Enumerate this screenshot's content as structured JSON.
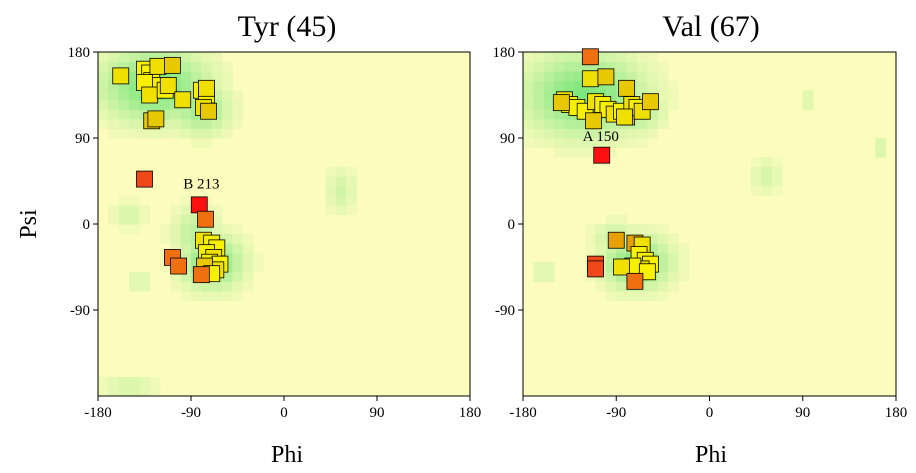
{
  "chart_data": [
    {
      "type": "scatter",
      "title": "Tyr (45)",
      "xlabel": "Phi",
      "ylabel": "Psi",
      "xlim": [
        -180,
        180
      ],
      "ylim": [
        -180,
        180
      ],
      "xticks": [
        "-180",
        "-90",
        "0",
        "90",
        "180"
      ],
      "yticks": [
        "180",
        "90",
        "0",
        "-90"
      ],
      "background_color": "#fcfcbc",
      "density_color": "#7ce67c",
      "density_regions": [
        {
          "phi": -125,
          "psi": 145,
          "rphi": 55,
          "rpsi": 40,
          "strength": 1.0
        },
        {
          "phi": -80,
          "psi": 120,
          "rphi": 30,
          "rpsi": 28,
          "strength": 0.7
        },
        {
          "phi": -70,
          "psi": -40,
          "rphi": 32,
          "rpsi": 30,
          "strength": 0.9
        },
        {
          "phi": -85,
          "psi": -10,
          "rphi": 25,
          "rpsi": 30,
          "strength": 0.5
        },
        {
          "phi": 55,
          "psi": 35,
          "rphi": 15,
          "rpsi": 25,
          "strength": 0.35
        },
        {
          "phi": -150,
          "psi": 10,
          "rphi": 18,
          "rpsi": 15,
          "strength": 0.3
        },
        {
          "phi": -140,
          "psi": -60,
          "rphi": 15,
          "rpsi": 15,
          "strength": 0.25
        },
        {
          "phi": -150,
          "psi": -170,
          "rphi": 30,
          "rpsi": 10,
          "strength": 0.35
        }
      ],
      "annotations": [
        {
          "text": "B 213",
          "phi": -80,
          "psi": 37
        }
      ],
      "points": [
        {
          "phi": -158,
          "psi": 155,
          "color": "#f0e000"
        },
        {
          "phi": -135,
          "psi": 162,
          "color": "#f7f000"
        },
        {
          "phi": -130,
          "psi": 158,
          "color": "#f7f000"
        },
        {
          "phi": -128,
          "psi": 150,
          "color": "#f7f000"
        },
        {
          "phi": -125,
          "psi": 140,
          "color": "#f7f000"
        },
        {
          "phi": -120,
          "psi": 145,
          "color": "#f7f000"
        },
        {
          "phi": -135,
          "psi": 148,
          "color": "#f7f000"
        },
        {
          "phi": -130,
          "psi": 135,
          "color": "#f0e000"
        },
        {
          "phi": -115,
          "psi": 140,
          "color": "#f7f000"
        },
        {
          "phi": -112,
          "psi": 145,
          "color": "#f0e000"
        },
        {
          "phi": -122,
          "psi": 165,
          "color": "#f0e000"
        },
        {
          "phi": -108,
          "psi": 166,
          "color": "#e8c800"
        },
        {
          "phi": -98,
          "psi": 130,
          "color": "#f0e000"
        },
        {
          "phi": -80,
          "psi": 140,
          "color": "#f7f000"
        },
        {
          "phi": -75,
          "psi": 135,
          "color": "#f7f000"
        },
        {
          "phi": -75,
          "psi": 142,
          "color": "#f0e000"
        },
        {
          "phi": -78,
          "psi": 122,
          "color": "#f0e000"
        },
        {
          "phi": -73,
          "psi": 118,
          "color": "#e8c800"
        },
        {
          "phi": -128,
          "psi": 108,
          "color": "#e8c800"
        },
        {
          "phi": -124,
          "psi": 110,
          "color": "#e8c800"
        },
        {
          "phi": -135,
          "psi": 47,
          "color": "#f04818"
        },
        {
          "phi": -82,
          "psi": 20,
          "color": "#ff1010"
        },
        {
          "phi": -76,
          "psi": 5,
          "color": "#f07010"
        },
        {
          "phi": -78,
          "psi": -17,
          "color": "#f0e000"
        },
        {
          "phi": -70,
          "psi": -20,
          "color": "#f7f000"
        },
        {
          "phi": -65,
          "psi": -25,
          "color": "#f7f000"
        },
        {
          "phi": -75,
          "psi": -30,
          "color": "#f7f000"
        },
        {
          "phi": -68,
          "psi": -35,
          "color": "#f0e000"
        },
        {
          "phi": -72,
          "psi": -40,
          "color": "#f7f000"
        },
        {
          "phi": -62,
          "psi": -42,
          "color": "#f7f000"
        },
        {
          "phi": -66,
          "psi": -48,
          "color": "#f0e000"
        },
        {
          "phi": -77,
          "psi": -44,
          "color": "#e8c800"
        },
        {
          "phi": -70,
          "psi": -52,
          "color": "#f7f000"
        },
        {
          "phi": -108,
          "psi": -35,
          "color": "#f07010"
        },
        {
          "phi": -102,
          "psi": -44,
          "color": "#f07010"
        },
        {
          "phi": -80,
          "psi": -53,
          "color": "#f07010"
        }
      ]
    },
    {
      "type": "scatter",
      "title": "Val (67)",
      "xlabel": "Phi",
      "ylabel": "",
      "xlim": [
        -180,
        180
      ],
      "ylim": [
        -180,
        180
      ],
      "xticks": [
        "-180",
        "-90",
        "0",
        "90",
        "180"
      ],
      "yticks": [
        "180",
        "90",
        "0",
        "-90"
      ],
      "background_color": "#fcfcbc",
      "density_color": "#7ce67c",
      "density_regions": [
        {
          "phi": -120,
          "psi": 135,
          "rphi": 60,
          "rpsi": 45,
          "strength": 1.0
        },
        {
          "phi": -75,
          "psi": 120,
          "rphi": 30,
          "rpsi": 25,
          "strength": 0.7
        },
        {
          "phi": -70,
          "psi": -40,
          "rphi": 35,
          "rpsi": 30,
          "strength": 0.9
        },
        {
          "phi": -90,
          "psi": -15,
          "rphi": 25,
          "rpsi": 20,
          "strength": 0.4
        },
        {
          "phi": 55,
          "psi": 50,
          "rphi": 15,
          "rpsi": 20,
          "strength": 0.3
        },
        {
          "phi": 165,
          "psi": 80,
          "rphi": 10,
          "rpsi": 12,
          "strength": 0.3
        },
        {
          "phi": -160,
          "psi": -50,
          "rphi": 15,
          "rpsi": 15,
          "strength": 0.25
        },
        {
          "phi": 95,
          "psi": 130,
          "rphi": 10,
          "rpsi": 12,
          "strength": 0.25
        }
      ],
      "annotations": [
        {
          "text": "A 150",
          "phi": -105,
          "psi": 87
        }
      ],
      "points": [
        {
          "phi": -115,
          "psi": 175,
          "color": "#f07010"
        },
        {
          "phi": -115,
          "psi": 152,
          "color": "#f0e000"
        },
        {
          "phi": -100,
          "psi": 154,
          "color": "#e8c800"
        },
        {
          "phi": -80,
          "psi": 142,
          "color": "#e8c800"
        },
        {
          "phi": -140,
          "psi": 130,
          "color": "#f0e000"
        },
        {
          "phi": -135,
          "psi": 125,
          "color": "#f7f000"
        },
        {
          "phi": -128,
          "psi": 122,
          "color": "#f7f000"
        },
        {
          "phi": -120,
          "psi": 118,
          "color": "#f7f000"
        },
        {
          "phi": -110,
          "psi": 128,
          "color": "#f0e000"
        },
        {
          "phi": -103,
          "psi": 125,
          "color": "#f7f000"
        },
        {
          "phi": -98,
          "psi": 120,
          "color": "#f7f000"
        },
        {
          "phi": -92,
          "psi": 115,
          "color": "#f0e000"
        },
        {
          "phi": -85,
          "psi": 118,
          "color": "#f7f000"
        },
        {
          "phi": -80,
          "psi": 112,
          "color": "#e8c800"
        },
        {
          "phi": -75,
          "psi": 125,
          "color": "#f0e000"
        },
        {
          "phi": -70,
          "psi": 122,
          "color": "#f7f000"
        },
        {
          "phi": -65,
          "psi": 118,
          "color": "#f0e000"
        },
        {
          "phi": -143,
          "psi": 127,
          "color": "#e8c800"
        },
        {
          "phi": -57,
          "psi": 128,
          "color": "#e8c800"
        },
        {
          "phi": -112,
          "psi": 108,
          "color": "#e8c800"
        },
        {
          "phi": -82,
          "psi": 112,
          "color": "#f0e000"
        },
        {
          "phi": -104,
          "psi": 72,
          "color": "#ff1010"
        },
        {
          "phi": -90,
          "psi": -17,
          "color": "#e8a000"
        },
        {
          "phi": -72,
          "psi": -20,
          "color": "#e8a000"
        },
        {
          "phi": -65,
          "psi": -22,
          "color": "#f0e000"
        },
        {
          "phi": -68,
          "psi": -32,
          "color": "#f7f000"
        },
        {
          "phi": -62,
          "psi": -38,
          "color": "#f7f000"
        },
        {
          "phi": -57,
          "psi": -42,
          "color": "#f7f000"
        },
        {
          "phi": -66,
          "psi": -47,
          "color": "#f0e000"
        },
        {
          "phi": -74,
          "psi": -44,
          "color": "#f7f000"
        },
        {
          "phi": -85,
          "psi": -45,
          "color": "#f0e000"
        },
        {
          "phi": -60,
          "psi": -50,
          "color": "#f7f000"
        },
        {
          "phi": -110,
          "psi": -42,
          "color": "#f04818"
        },
        {
          "phi": -110,
          "psi": -47,
          "color": "#f04818"
        },
        {
          "phi": -72,
          "psi": -60,
          "color": "#f07010"
        }
      ]
    }
  ]
}
